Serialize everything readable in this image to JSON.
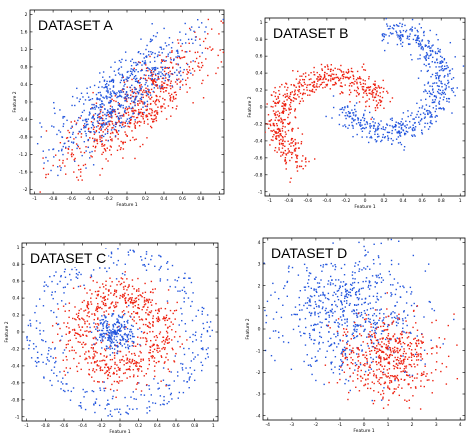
{
  "colors": {
    "class_red": "#ee2211",
    "class_blue": "#2255dd"
  },
  "chart_data": [
    {
      "type": "scatter",
      "title": "DATASET A",
      "xlabel": "Feature 1",
      "ylabel": "Feature 2",
      "xlim": [
        -1.05,
        1.05
      ],
      "ylim": [
        -2.1,
        2.1
      ],
      "xticks": [
        -1,
        -0.8,
        -0.6,
        -0.4,
        -0.2,
        0,
        0.2,
        0.4,
        0.6,
        0.8,
        1
      ],
      "yticks": [
        -2,
        -1.6,
        -1.2,
        -0.8,
        -0.4,
        0,
        0.4,
        0.8,
        1.2,
        1.6,
        2
      ],
      "xtick_labels": [
        "-1",
        "-0.8",
        "-0.6",
        "-0.4",
        "-0.2",
        "0",
        "0.2",
        "0.4",
        "0.6",
        "0.8",
        "1"
      ],
      "ytick_labels": [
        "-2",
        "-1.6",
        "-1.2",
        "-0.8",
        "-0.4",
        "0",
        "0.4",
        "0.8",
        "1.2",
        "1.6",
        "2"
      ],
      "grid": false,
      "series": [
        {
          "color": "#ee2211",
          "shape": "elongated diagonal band, lower-right side",
          "center": [
            0.1,
            -0.12
          ],
          "along_axis": [
            0.5,
            1.0
          ],
          "spread_along": 0.38,
          "spread_across": 0.09,
          "count": 650
        },
        {
          "color": "#2255dd",
          "shape": "elongated diagonal band, upper-left side",
          "center": [
            -0.1,
            0.12
          ],
          "along_axis": [
            0.5,
            1.0
          ],
          "spread_along": 0.36,
          "spread_across": 0.09,
          "count": 650
        }
      ]
    },
    {
      "type": "scatter",
      "title": "DATASET B",
      "xlabel": "Feature 1",
      "ylabel": "Feature 2",
      "xlim": [
        -1.05,
        1.05
      ],
      "ylim": [
        -1.05,
        1.05
      ],
      "xticks": [
        -1,
        -0.8,
        -0.6,
        -0.4,
        -0.2,
        0,
        0.2,
        0.4,
        0.6,
        0.8,
        1
      ],
      "yticks": [
        -1,
        -0.8,
        -0.6,
        -0.4,
        -0.2,
        0,
        0.2,
        0.4,
        0.6,
        0.8,
        1
      ],
      "xtick_labels": [
        "-1",
        "-0.8",
        "-0.6",
        "-0.4",
        "-0.2",
        "0",
        "0.2",
        "0.4",
        "0.6",
        "0.8",
        "1"
      ],
      "ytick_labels": [
        "-1",
        "-0.8",
        "-0.6",
        "-0.4",
        "-0.2",
        "0",
        "0.2",
        "0.4",
        "0.6",
        "0.8",
        "1"
      ],
      "grid": false,
      "series": [
        {
          "color": "#ee2211",
          "shape": "upper arc opening downward, left tail curling down",
          "arc_center": [
            -0.35,
            -0.2
          ],
          "radius": [
            0.55,
            0.55
          ],
          "angle_range_deg": [
            25,
            235
          ],
          "noise": 0.08,
          "count": 600
        },
        {
          "color": "#2255dd",
          "shape": "lower arc opening upward, right end rising",
          "arc_center": [
            0.25,
            0.3
          ],
          "radius": [
            0.55,
            0.6
          ],
          "angle_range_deg": [
            -150,
            90
          ],
          "noise": 0.08,
          "count": 600
        }
      ]
    },
    {
      "type": "scatter",
      "title": "DATASET C",
      "xlabel": "Feature 1",
      "ylabel": "Feature 2",
      "xlim": [
        -1.05,
        1.05
      ],
      "ylim": [
        -1.05,
        1.05
      ],
      "xticks": [
        -1,
        -0.8,
        -0.6,
        -0.4,
        -0.2,
        0,
        0.2,
        0.4,
        0.6,
        0.8,
        1
      ],
      "yticks": [
        -1,
        -0.8,
        -0.6,
        -0.4,
        -0.2,
        0,
        0.2,
        0.4,
        0.6,
        0.8,
        1
      ],
      "xtick_labels": [
        "-1",
        "-0.8",
        "-0.6",
        "-0.4",
        "-0.2",
        "0",
        "0.2",
        "0.4",
        "0.6",
        "0.8",
        "1"
      ],
      "ytick_labels": [
        "-1",
        "-0.8",
        "-0.6",
        "-0.4",
        "-0.2",
        "0",
        "0.2",
        "0.4",
        "0.6",
        "0.8",
        "1"
      ],
      "grid": false,
      "series": [
        {
          "color": "#2255dd",
          "shape": "scattered outer field",
          "center": [
            0,
            0
          ],
          "radius_range": [
            0.6,
            1.0
          ],
          "count": 380
        },
        {
          "color": "#ee2211",
          "shape": "ring",
          "center": [
            0,
            0
          ],
          "radius_mean": 0.45,
          "radius_sd": 0.12,
          "count": 700
        },
        {
          "color": "#2255dd",
          "shape": "inner core cluster",
          "center": [
            -0.05,
            0.0
          ],
          "radius_mean": 0.13,
          "radius_sd": 0.07,
          "count": 240
        }
      ]
    },
    {
      "type": "scatter",
      "title": "DATASET D",
      "xlabel": "Feature 1",
      "ylabel": "Feature 2",
      "xlim": [
        -4.2,
        4.2
      ],
      "ylim": [
        -4.2,
        4.2
      ],
      "xticks": [
        -4,
        -3,
        -2,
        -1,
        0,
        1,
        2,
        3,
        4
      ],
      "yticks": [
        -4,
        -3,
        -2,
        -1,
        0,
        1,
        2,
        3,
        4
      ],
      "xtick_labels": [
        "-4",
        "-3",
        "-2",
        "-1",
        "0",
        "1",
        "2",
        "3",
        "4"
      ],
      "ytick_labels": [
        "-4",
        "-3",
        "-2",
        "-1",
        "0",
        "1",
        "2",
        "3",
        "4"
      ],
      "grid": false,
      "series": [
        {
          "color": "#2255dd",
          "shape": "broad cloud, upper-left",
          "center": [
            -0.6,
            0.9
          ],
          "sd": [
            1.5,
            1.45
          ],
          "count": 700
        },
        {
          "color": "#ee2211",
          "shape": "compact cloud, lower-right",
          "center": [
            1.1,
            -1.4
          ],
          "sd": [
            1.05,
            0.95
          ],
          "count": 520
        }
      ]
    }
  ]
}
